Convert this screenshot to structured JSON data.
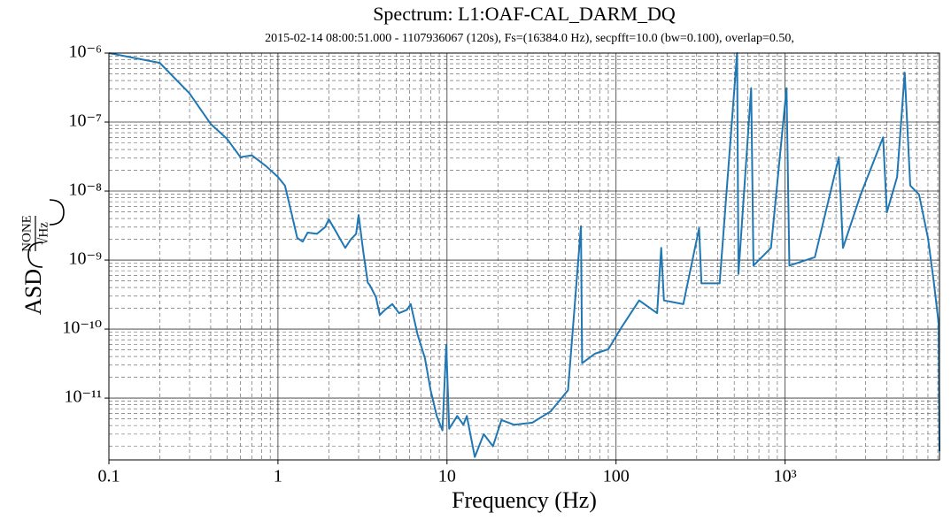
{
  "chart_data": {
    "type": "line",
    "title": "Spectrum: L1:OAF-CAL_DARM_DQ",
    "subtitle": "2015-02-14 08:00:51.000 - 1107936067 (120s), Fs=(16384.0 Hz), secpfft=10.0 (bw=0.100), overlap=0.50,",
    "xlabel": "Frequency (Hz)",
    "ylabel": {
      "text": "ASD",
      "unit_numerator": "NONE",
      "unit_denominator": "√Hz"
    },
    "xscale": "log",
    "yscale": "log",
    "grid": true,
    "minor_grid": true,
    "color": "#1f77b4",
    "xlim": [
      0.1,
      8192
    ],
    "ylim": [
      1.27e-12,
      1e-06
    ],
    "xticks": [
      0.1,
      1,
      10,
      100,
      {
        "value": 1000,
        "label": "10³"
      }
    ],
    "yticks": [
      {
        "value": 1e-11,
        "label": "10⁻¹¹"
      },
      {
        "value": 1e-10,
        "label": "10⁻¹⁰"
      },
      {
        "value": 1e-09,
        "label": "10⁻⁹"
      },
      {
        "value": 1e-08,
        "label": "10⁻⁸"
      },
      {
        "value": 1e-07,
        "label": "10⁻⁷"
      },
      {
        "value": 1e-06,
        "label": "10⁻⁶"
      }
    ],
    "x": [
      0.1,
      0.2,
      0.3,
      0.4,
      0.5,
      0.6,
      0.7,
      0.85,
      1.0,
      1.1,
      1.2,
      1.3,
      1.4,
      1.5,
      1.7,
      1.9,
      2.0,
      2.2,
      2.5,
      2.7,
      2.9,
      3.0,
      3.2,
      3.4,
      3.5,
      3.8,
      4.0,
      4.3,
      4.75,
      5.2,
      5.8,
      6.1,
      6.7,
      7.4,
      8.0,
      8.7,
      9.4,
      9.9,
      10.3,
      11.5,
      12.5,
      13.1,
      14.6,
      16.5,
      18.7,
      21,
      25,
      32,
      41,
      52,
      62,
      63,
      75,
      90,
      108,
      137,
      175,
      185,
      192,
      250,
      310,
      320,
      410,
      520,
      530,
      630,
      650,
      825,
      1020,
      1060,
      1500,
      2080,
      2200,
      2800,
      3800,
      4000,
      4600,
      5100,
      5500,
      6200,
      7000,
      7600,
      8100,
      8192
    ],
    "values": [
      1e-06,
      7.2e-07,
      2.6e-07,
      9.4e-08,
      5.7e-08,
      3.1e-08,
      3.3e-08,
      2.3e-08,
      1.6e-08,
      1.2e-08,
      4.9e-09,
      2.1e-09,
      1.85e-09,
      2.5e-09,
      2.4e-09,
      3e-09,
      3.9e-09,
      2.6e-09,
      1.5e-09,
      2e-09,
      2.4e-09,
      4.5e-09,
      1.3e-09,
      4.7e-10,
      4.3e-10,
      2.9e-10,
      1.6e-10,
      1.9e-10,
      2.3e-10,
      1.7e-10,
      1.9e-10,
      2.3e-10,
      8.3e-11,
      3.8e-11,
      1.3e-11,
      5.5e-12,
      3.4e-12,
      5.9e-11,
      3.6e-12,
      5.5e-12,
      4.1e-12,
      5.5e-12,
      1.4e-12,
      3e-12,
      2e-12,
      4.8e-12,
      4.1e-12,
      4.4e-12,
      6.4e-12,
      1.3e-11,
      3.1e-09,
      3.2e-11,
      4.4e-11,
      5.1e-11,
      1.07e-10,
      2.6e-10,
      1.7e-10,
      1.5e-09,
      2.6e-10,
      2.3e-10,
      2.9e-09,
      4.6e-10,
      4.6e-10,
      1e-06,
      6.3e-10,
      3.1e-07,
      8.3e-10,
      1.5e-09,
      3.1e-07,
      8.3e-10,
      1.1e-09,
      3.1e-08,
      1.5e-09,
      8.9e-09,
      6e-08,
      4.9e-09,
      1.6e-08,
      5.2e-07,
      1.2e-08,
      8.9e-09,
      2.1e-09,
      4.6e-10,
      1.2e-10,
      1.7e-12
    ]
  }
}
